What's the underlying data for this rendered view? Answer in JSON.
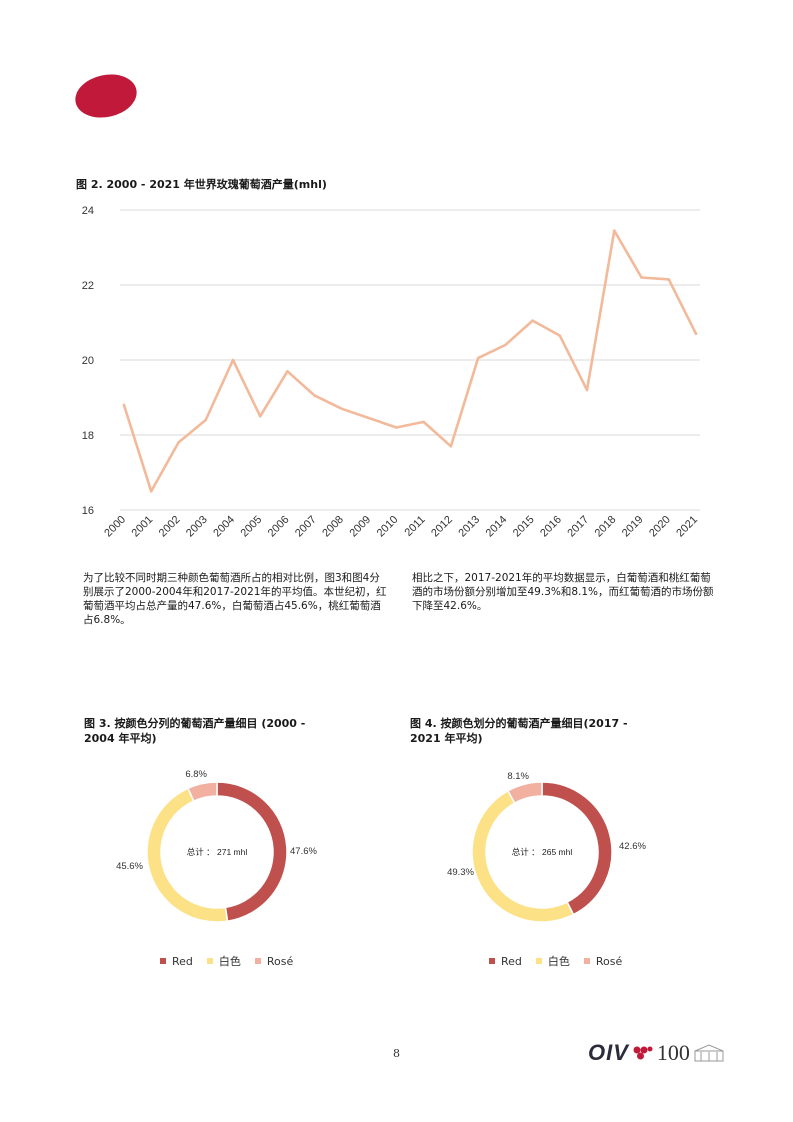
{
  "figure2": {
    "title": "图 2. 2000 - 2021 年世界玫瑰葡萄酒产量(mhl)"
  },
  "chart_data": [
    {
      "type": "line",
      "title": "图 2. 2000 - 2021 年世界玫瑰葡萄酒产量(mhl)",
      "categories": [
        "2000",
        "2001",
        "2002",
        "2003",
        "2004",
        "2005",
        "2006",
        "2007",
        "2008",
        "2009",
        "2010",
        "2011",
        "2012",
        "2013",
        "2014",
        "2015",
        "2016",
        "2017",
        "2018",
        "2019",
        "2020",
        "2021"
      ],
      "series": [
        {
          "values": [
            18.8,
            16.5,
            17.8,
            18.4,
            20.0,
            18.5,
            19.7,
            19.05,
            18.7,
            18.45,
            18.2,
            18.35,
            17.7,
            20.05,
            20.4,
            21.05,
            20.65,
            19.2,
            23.45,
            22.2,
            22.15,
            20.7
          ],
          "color": "#f2b99a"
        }
      ],
      "ylim": [
        16,
        24
      ],
      "yticks": [
        "16",
        "18",
        "20",
        "22",
        "24"
      ],
      "grid": true,
      "xlabel": "",
      "ylabel": ""
    },
    {
      "type": "pie",
      "title": "图 3. 按颜色分列的葡萄酒产量细目 (2000 - 2004 年平均)",
      "center_label": "总计 ： 271 mhl",
      "slices": [
        {
          "label": "Red",
          "value": 47.6,
          "display": "47.6%",
          "color": "#c0504d"
        },
        {
          "label": "白色",
          "value": 45.6,
          "display": "45.6%",
          "color": "#fce186"
        },
        {
          "label": "Rosé",
          "value": 6.8,
          "display": "6.8%",
          "color": "#f2b1a0"
        }
      ],
      "legend": "bottom"
    },
    {
      "type": "pie",
      "title": "图 4. 按颜色划分的葡萄酒产量细目(2017 - 2021 年平均)",
      "center_label": "总计 ： 265 mhl",
      "slices": [
        {
          "label": "Red",
          "value": 42.6,
          "display": "42.6%",
          "color": "#c0504d"
        },
        {
          "label": "白色",
          "value": 49.3,
          "display": "49.3%",
          "color": "#fce186"
        },
        {
          "label": "Rosé",
          "value": 8.1,
          "display": "8.1%",
          "color": "#f2b1a0"
        }
      ],
      "legend": "bottom"
    }
  ],
  "text": {
    "para_left": "为了比较不同时期三种颜色葡萄酒所占的相对比例，图3和图4分别展示了2000-2004年和2017-2021年的平均值。本世纪初，红葡萄酒平均占总产量的47.6%，白葡萄酒占45.6%，桃红葡萄酒占6.8%。",
    "para_right": "相比之下，2017-2021年的平均数据显示，白葡萄酒和桃红葡萄酒的市场份额分别增加至49.3%和8.1%，而红葡萄酒的市场份额下降至42.6%。",
    "fig3_title_line1": "图 3. 按颜色分列的葡萄酒产量细目 (2000 -",
    "fig3_title_line2": "2004 年平均)",
    "fig4_title_line1": "图 4. 按颜色划分的葡萄酒产量细目(2017 -",
    "fig4_title_line2": "2021 年平均)"
  },
  "footer": {
    "page_number": "8",
    "logo_text": "OIV",
    "logo_number": "100"
  },
  "colors": {
    "brand_red": "#c0193a",
    "line": "#f2b99a",
    "red": "#c0504d",
    "white": "#fce186",
    "rose": "#f2b1a0"
  }
}
